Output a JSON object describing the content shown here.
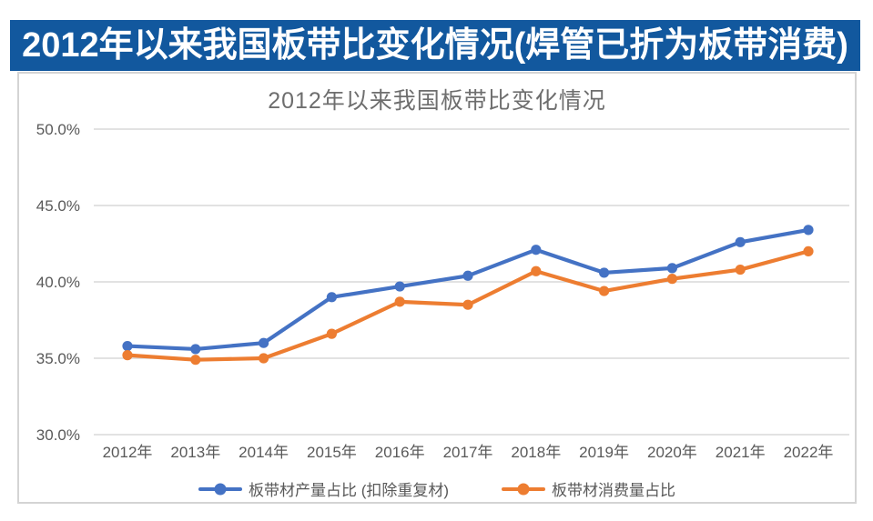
{
  "banner": {
    "title": "2012年以来我国板带比变化情况(焊管已折为板带消费)",
    "background": "#12589E",
    "text_color": "#FFFFFF"
  },
  "chart_data": {
    "type": "line",
    "title": "2012年以来我国板带比变化情况",
    "categories": [
      "2012年",
      "2013年",
      "2014年",
      "2015年",
      "2016年",
      "2017年",
      "2018年",
      "2019年",
      "2020年",
      "2021年",
      "2022年"
    ],
    "series": [
      {
        "name": "板带材产量占比 (扣除重复材)",
        "color": "#4472C4",
        "values": [
          35.8,
          35.6,
          36.0,
          39.0,
          39.7,
          40.4,
          42.1,
          40.6,
          40.9,
          42.6,
          43.4
        ]
      },
      {
        "name": "板带材消费量占比",
        "color": "#ED7D31",
        "values": [
          35.2,
          34.9,
          35.0,
          36.6,
          38.7,
          38.5,
          40.7,
          39.4,
          40.2,
          40.8,
          42.0
        ]
      }
    ],
    "ylim": [
      30,
      50
    ],
    "ytick_step": 5,
    "ytick_labels": [
      "50.0%",
      "45.0%",
      "40.0%",
      "35.0%",
      "30.0%"
    ],
    "unit": "%",
    "grid": "horizontal",
    "legend_position": "bottom",
    "tick_color": "#595959",
    "grid_color": "#D9D9D9"
  }
}
